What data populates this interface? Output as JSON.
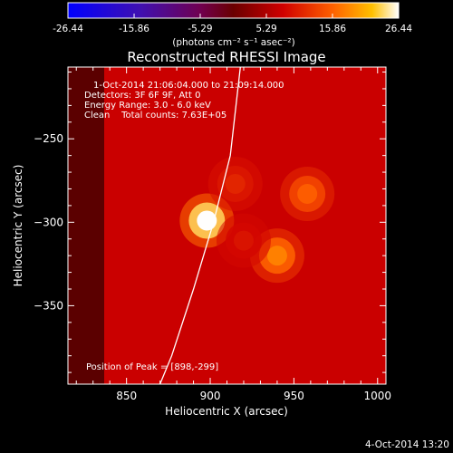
{
  "chart_data": {
    "type": "heatmap",
    "title": "Reconstructed RHESSI Image",
    "xlabel": "Heliocentric X (arcsec)",
    "ylabel": "Heliocentric Y (arcsec)",
    "xlim": [
      815,
      1005
    ],
    "ylim": [
      -397,
      -207
    ],
    "x_ticks": [
      "850",
      "900",
      "950",
      "1000"
    ],
    "y_ticks": [
      "-250",
      "-300",
      "-350"
    ],
    "colorbar": {
      "ticks": [
        "-26.44",
        "-15.86",
        "-5.29",
        "5.29",
        "15.86",
        "26.44"
      ],
      "range": [
        -26.44,
        26.44
      ],
      "unit_label": "(photons cm⁻² s⁻¹ asec⁻²)"
    },
    "annotations": [
      "1-Oct-2014 21:06:04.000 to 21:09:14.000",
      "Detectors: 3F 6F 9F, Att 0",
      "Energy Range: 3.0 - 6.0 keV",
      "Clean    Total counts: 7.63E+05"
    ],
    "peak_label": "Position of Peak = [898,-299]",
    "sources": [
      {
        "x": 898,
        "y": -299,
        "value": 26.4
      },
      {
        "x": 940,
        "y": -320,
        "value": 18.0
      },
      {
        "x": 958,
        "y": -283,
        "value": 15.5
      },
      {
        "x": 915,
        "y": -277,
        "value": 11.0
      },
      {
        "x": 920,
        "y": -311,
        "value": 9.5
      }
    ],
    "background_level": 7.5,
    "limb": [
      [
        918,
        -207
      ],
      [
        912,
        -260
      ],
      [
        902,
        -300
      ],
      [
        890,
        -340
      ],
      [
        877,
        -380
      ],
      [
        870,
        -397
      ]
    ]
  },
  "footer_date": "4-Oct-2014 13:20",
  "colors": {
    "background": "#000000",
    "text": "#ffffff",
    "limb": "#ffffff"
  }
}
